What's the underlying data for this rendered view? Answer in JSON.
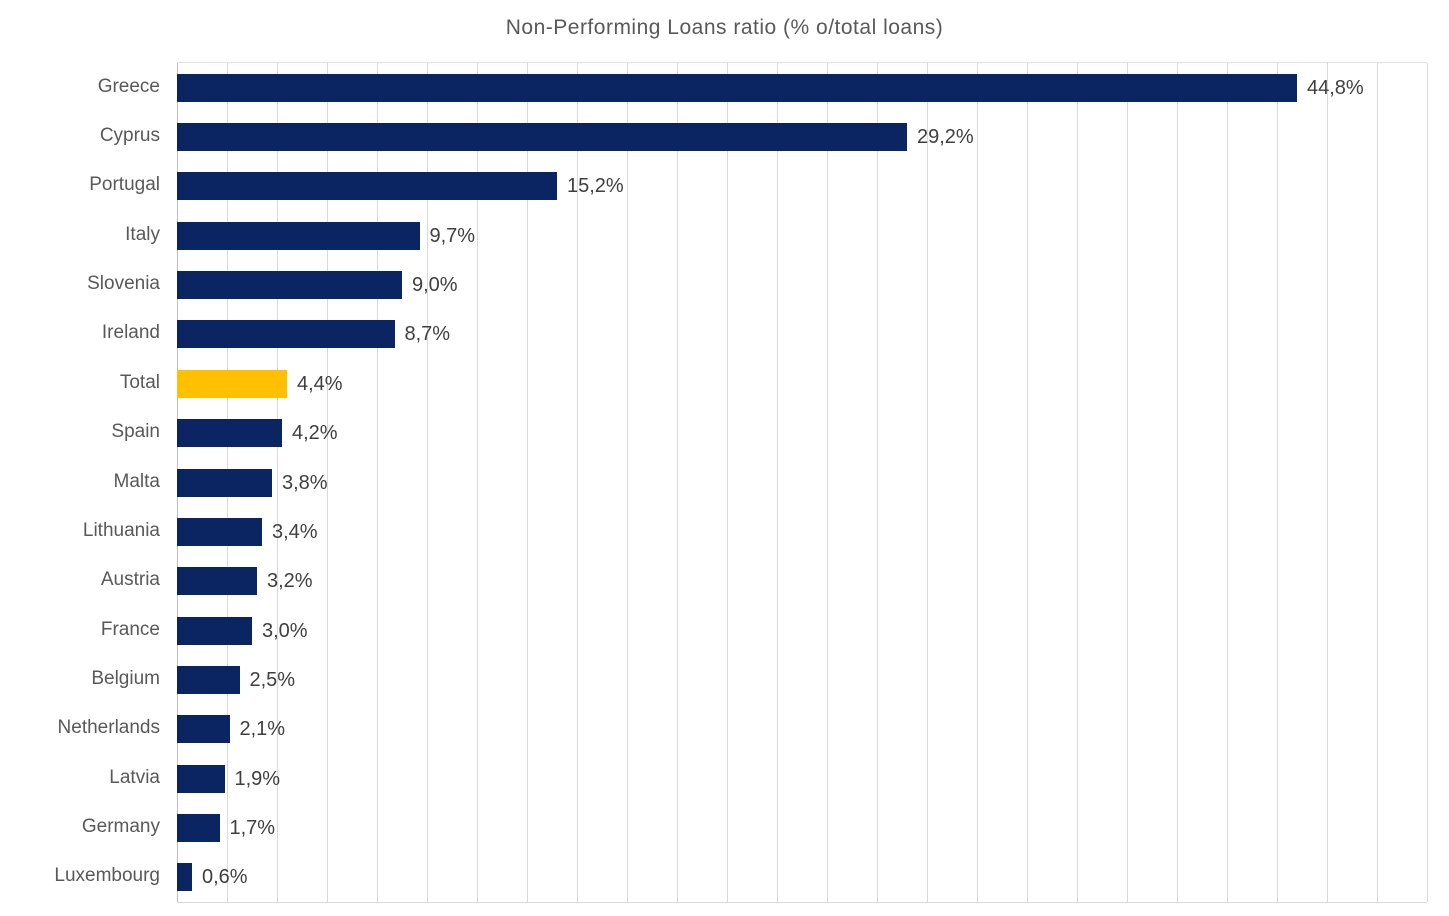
{
  "title": "Non-Performing Loans ratio (% o/total loans)",
  "chart_data": {
    "type": "bar",
    "orientation": "horizontal",
    "title": "Non-Performing Loans ratio (% o/total loans)",
    "categories": [
      "Greece",
      "Cyprus",
      "Portugal",
      "Italy",
      "Slovenia",
      "Ireland",
      "Total",
      "Spain",
      "Malta",
      "Lithuania",
      "Austria",
      "France",
      "Belgium",
      "Netherlands",
      "Latvia",
      "Germany",
      "Luxembourg"
    ],
    "values": [
      44.8,
      29.2,
      15.2,
      9.7,
      9.0,
      8.7,
      4.4,
      4.2,
      3.8,
      3.4,
      3.2,
      3.0,
      2.5,
      2.1,
      1.9,
      1.7,
      0.6
    ],
    "data_labels": [
      "44,8%",
      "29,2%",
      "15,2%",
      "9,7%",
      "9,0%",
      "8,7%",
      "4,4%",
      "4,2%",
      "3,8%",
      "3,4%",
      "3,2%",
      "3,0%",
      "2,5%",
      "2,1%",
      "1,9%",
      "1,7%",
      "0,6%"
    ],
    "xlabel": "",
    "ylabel": "",
    "xlim": [
      0,
      50
    ],
    "gridline_step": 2,
    "grid": "vertical",
    "legend": "none",
    "bar_color": "#0b2563",
    "highlight_category": "Total",
    "highlight_color": "#ffc000",
    "label_color": "#595959",
    "value_label_color": "#3f3f3f",
    "gridline_color": "#d9d9d9",
    "title_color": "#595959"
  }
}
